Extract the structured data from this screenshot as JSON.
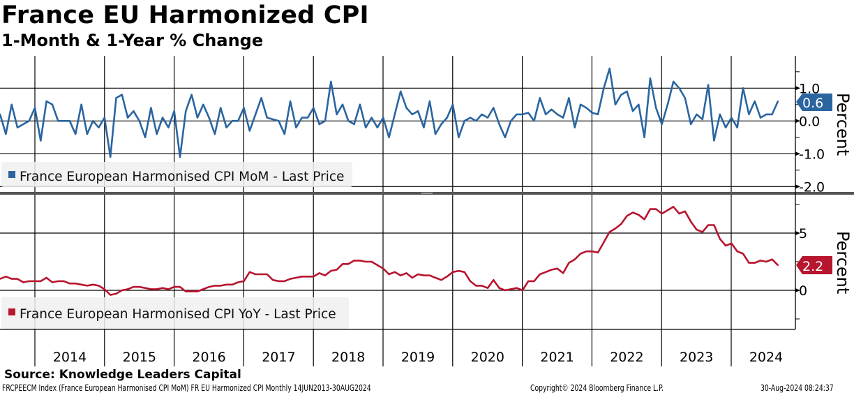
{
  "title": "France EU Harmonized CPI",
  "subtitle": "1-Month & 1-Year % Change",
  "source": "Source: Knowledge Leaders Capital",
  "footer": {
    "description": "FRCPEECM Index (France European Harmonised CPI MoM) FR EU Harmonized CPI  Monthly 14JUN2013-30AUG2024",
    "copyright": "Copyright© 2024 Bloomberg Finance L.P.",
    "timestamp": "30-Aug-2024 08:24:37"
  },
  "colors": {
    "mom": "#2a65a0",
    "yoy": "#b8152e"
  },
  "chart_data": [
    {
      "type": "line",
      "title": "France European Harmonised CPI MoM - Last Price",
      "legend": "France European Harmonised CPI MoM - Last Price",
      "legend_position": "bottom-left",
      "ylabel": "Percent",
      "ylim": [
        -2.2,
        2.0
      ],
      "yticks": [
        "1.0",
        "0.0",
        "-1.0",
        "-2.0"
      ],
      "ytick_values": [
        1,
        0,
        -1,
        -2
      ],
      "last_value": "0.6",
      "start": "2013-06",
      "frequency": "monthly",
      "values": [
        0.2,
        -0.4,
        0.5,
        -0.2,
        -0.1,
        0.0,
        0.4,
        -0.6,
        0.6,
        0.5,
        0.0,
        0.0,
        0.0,
        -0.4,
        0.5,
        -0.4,
        0.0,
        -0.2,
        0.1,
        -1.1,
        0.7,
        0.8,
        0.1,
        0.3,
        0.0,
        -0.5,
        0.4,
        -0.4,
        0.1,
        -0.2,
        0.3,
        -1.1,
        0.3,
        0.8,
        0.1,
        0.5,
        0.1,
        -0.4,
        0.4,
        -0.2,
        0.0,
        0.0,
        0.4,
        -0.3,
        0.2,
        0.7,
        0.1,
        0.05,
        0.0,
        -0.4,
        0.6,
        -0.2,
        0.1,
        0.1,
        0.4,
        -0.1,
        0.0,
        1.2,
        0.2,
        0.5,
        0.0,
        -0.1,
        0.5,
        -0.2,
        0.1,
        -0.2,
        0.1,
        -0.5,
        0.2,
        0.9,
        0.4,
        0.2,
        0.3,
        -0.2,
        0.6,
        -0.4,
        -0.1,
        0.1,
        0.5,
        -0.5,
        0.0,
        0.1,
        0.0,
        0.2,
        0.1,
        0.4,
        -0.1,
        -0.5,
        0.0,
        0.2,
        0.2,
        0.25,
        0.0,
        0.7,
        0.2,
        0.35,
        0.2,
        0.1,
        0.7,
        -0.2,
        0.5,
        0.4,
        0.25,
        0.2,
        1.0,
        1.6,
        0.5,
        0.8,
        0.9,
        0.3,
        0.5,
        -0.5,
        1.3,
        0.4,
        -0.1,
        0.5,
        1.2,
        1.0,
        0.7,
        -0.1,
        0.2,
        0.05,
        1.1,
        -0.6,
        0.2,
        -0.2,
        0.1,
        -0.2,
        1.0,
        0.2,
        0.6,
        0.1,
        0.2,
        0.2,
        0.6
      ]
    },
    {
      "type": "line",
      "title": "France European Harmonised CPI YoY - Last Price",
      "legend": "France European Harmonised CPI YoY - Last Price",
      "legend_position": "bottom-left",
      "ylabel": "Percent",
      "ylim": [
        -3.4,
        9.1
      ],
      "yticks": [
        "5",
        "0"
      ],
      "ytick_values": [
        5,
        0
      ],
      "last_value": "2.2",
      "start": "2013-06",
      "frequency": "monthly",
      "values": [
        1.0,
        1.2,
        1.0,
        1.0,
        0.7,
        0.8,
        0.8,
        0.8,
        1.1,
        0.7,
        0.8,
        0.8,
        0.6,
        0.6,
        0.5,
        0.4,
        0.5,
        0.4,
        0.1,
        -0.4,
        -0.3,
        0.0,
        0.1,
        0.3,
        0.3,
        0.2,
        0.1,
        0.1,
        0.2,
        0.1,
        0.3,
        0.3,
        -0.1,
        -0.1,
        -0.1,
        0.1,
        0.3,
        0.4,
        0.4,
        0.5,
        0.5,
        0.7,
        0.8,
        1.6,
        1.4,
        1.4,
        1.4,
        0.9,
        0.8,
        0.8,
        1.0,
        1.1,
        1.2,
        1.2,
        1.2,
        1.5,
        1.3,
        1.7,
        1.8,
        2.3,
        2.3,
        2.6,
        2.6,
        2.5,
        2.5,
        2.2,
        1.9,
        1.4,
        1.6,
        1.3,
        1.5,
        1.1,
        1.4,
        1.3,
        1.3,
        1.1,
        0.9,
        1.2,
        1.6,
        1.7,
        1.6,
        0.8,
        0.4,
        0.4,
        0.2,
        0.9,
        0.2,
        0.0,
        0.1,
        0.2,
        0.0,
        0.8,
        0.8,
        1.4,
        1.6,
        1.8,
        1.9,
        1.5,
        2.4,
        2.7,
        3.2,
        3.4,
        3.4,
        3.3,
        4.2,
        5.1,
        5.4,
        5.8,
        6.5,
        6.8,
        6.6,
        6.2,
        7.1,
        7.1,
        6.7,
        7.0,
        7.3,
        6.7,
        6.9,
        6.0,
        5.3,
        5.1,
        5.7,
        5.7,
        4.5,
        3.9,
        4.1,
        3.4,
        3.2,
        2.4,
        2.4,
        2.6,
        2.5,
        2.7,
        2.2
      ]
    }
  ],
  "x_axis": {
    "tick_labels": [
      "2014",
      "2015",
      "2016",
      "2017",
      "2018",
      "2019",
      "2020",
      "2021",
      "2022",
      "2023",
      "2024"
    ]
  }
}
